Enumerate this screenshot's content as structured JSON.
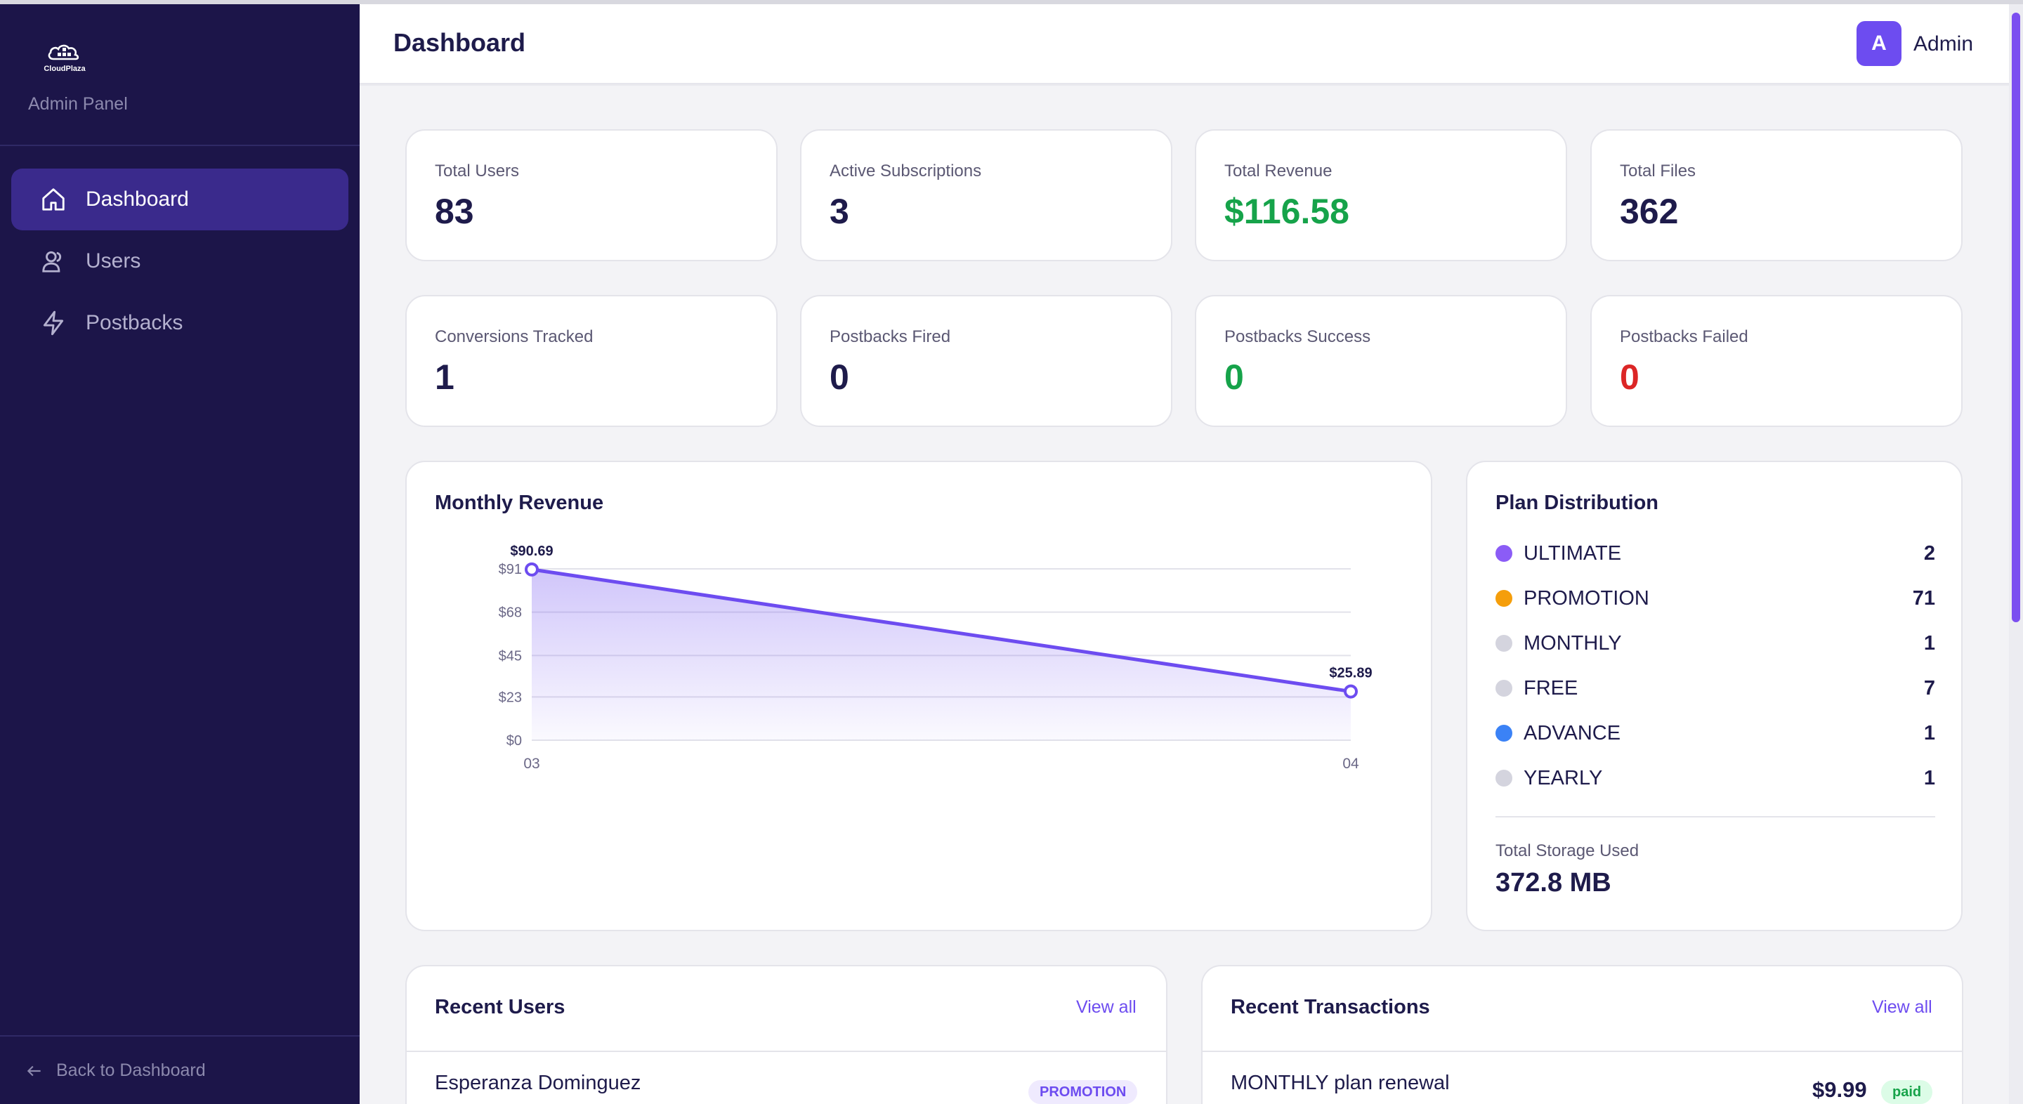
{
  "app": {
    "brand": "CloudPlaza",
    "panel_subtitle": "Admin Panel",
    "back_label": "Back to Dashboard"
  },
  "sidebar": {
    "items": [
      {
        "label": "Dashboard",
        "icon": "home-icon",
        "active": true
      },
      {
        "label": "Users",
        "icon": "users-icon",
        "active": false
      },
      {
        "label": "Postbacks",
        "icon": "bolt-icon",
        "active": false
      }
    ]
  },
  "header": {
    "title": "Dashboard",
    "avatar_initial": "A",
    "user_name": "Admin"
  },
  "stats": [
    {
      "label": "Total Users",
      "value": "83",
      "tone": "default"
    },
    {
      "label": "Active Subscriptions",
      "value": "3",
      "tone": "default"
    },
    {
      "label": "Total Revenue",
      "value": "$116.58",
      "tone": "green"
    },
    {
      "label": "Total Files",
      "value": "362",
      "tone": "default"
    },
    {
      "label": "Conversions Tracked",
      "value": "1",
      "tone": "default"
    },
    {
      "label": "Postbacks Fired",
      "value": "0",
      "tone": "default"
    },
    {
      "label": "Postbacks Success",
      "value": "0",
      "tone": "green"
    },
    {
      "label": "Postbacks Failed",
      "value": "0",
      "tone": "red"
    }
  ],
  "revenue_card": {
    "title": "Monthly Revenue"
  },
  "chart_data": {
    "type": "area",
    "title": "Monthly Revenue",
    "x": [
      "03",
      "04"
    ],
    "series": [
      {
        "values": [
          90.69,
          25.89
        ],
        "labels": [
          "$90.69",
          "$25.89"
        ]
      }
    ],
    "y_ticks": [
      "$91",
      "$68",
      "$45",
      "$23",
      "$0"
    ],
    "y_tick_values": [
      91,
      68,
      45,
      23,
      0
    ],
    "ylim": [
      0,
      91
    ],
    "grid": true,
    "color": "#6d4cf0"
  },
  "plan_card": {
    "title": "Plan Distribution",
    "plans": [
      {
        "name": "ULTIMATE",
        "count": "2",
        "color": "#8b5cf6"
      },
      {
        "name": "PROMOTION",
        "count": "71",
        "color": "#f59e0b"
      },
      {
        "name": "MONTHLY",
        "count": "1",
        "color": "#d4d4de"
      },
      {
        "name": "FREE",
        "count": "7",
        "color": "#d4d4de"
      },
      {
        "name": "ADVANCE",
        "count": "1",
        "color": "#3b82f6"
      },
      {
        "name": "YEARLY",
        "count": "1",
        "color": "#d4d4de"
      }
    ],
    "storage_label": "Total Storage Used",
    "storage_value": "372.8 MB"
  },
  "recent_users": {
    "title": "Recent Users",
    "view_all": "View all",
    "rows": [
      {
        "name": "Esperanza Dominguez",
        "sub": "",
        "badge": "PROMOTION"
      }
    ]
  },
  "recent_transactions": {
    "title": "Recent Transactions",
    "view_all": "View all",
    "rows": [
      {
        "title": "MONTHLY plan renewal",
        "amount": "$9.99",
        "status": "paid"
      }
    ]
  }
}
